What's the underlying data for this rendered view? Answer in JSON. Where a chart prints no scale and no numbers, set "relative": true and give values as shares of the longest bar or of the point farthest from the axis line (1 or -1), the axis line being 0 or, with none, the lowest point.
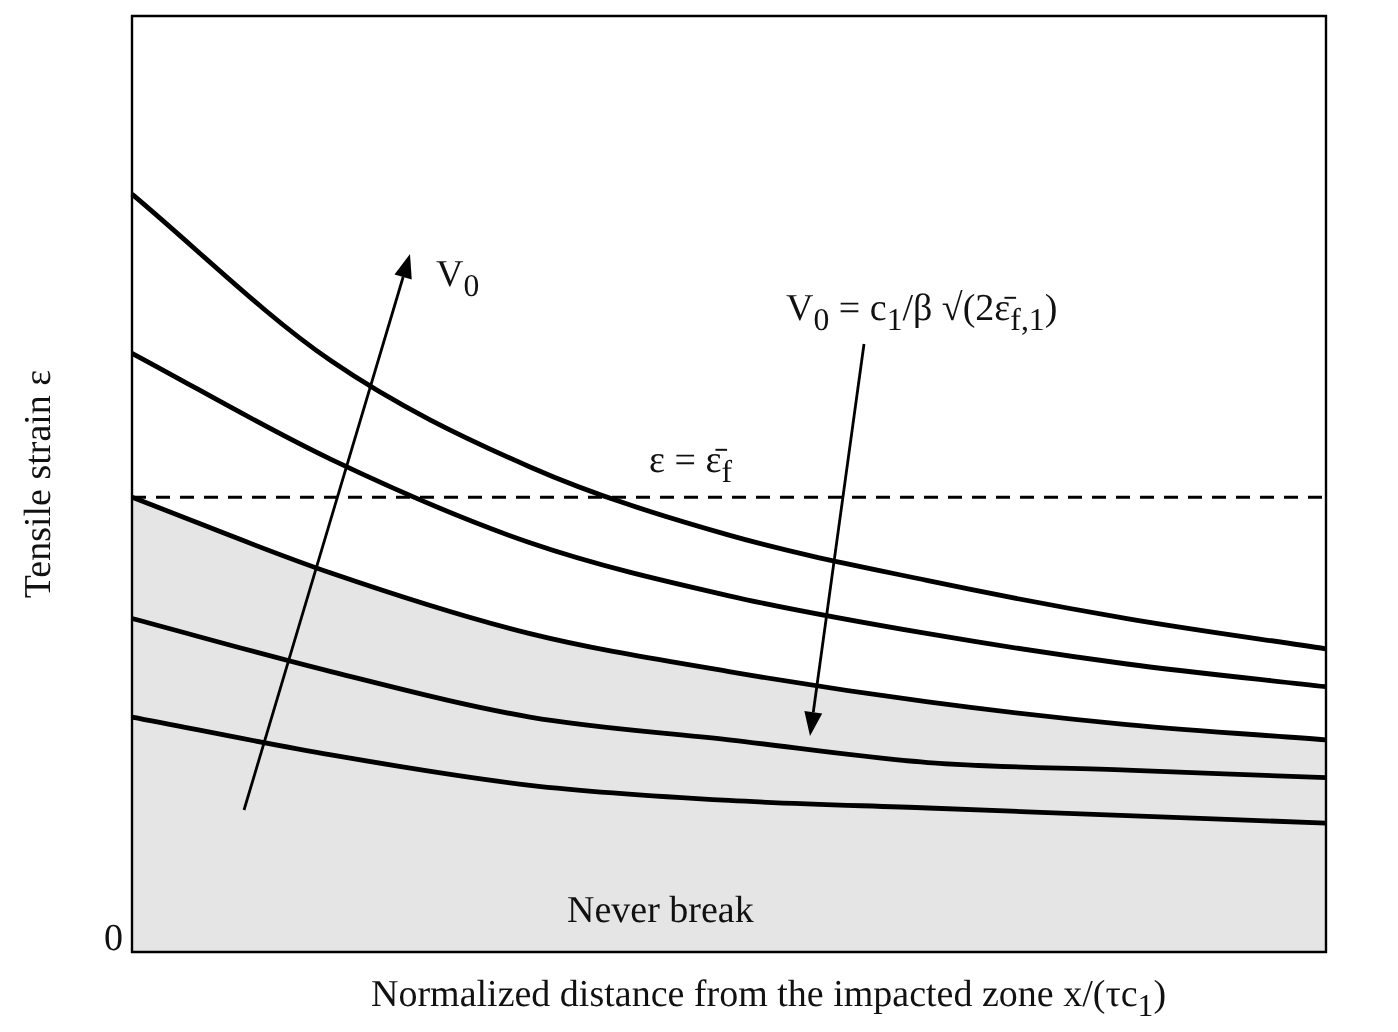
{
  "chart_data": {
    "type": "line",
    "relative": true,
    "xlabel": "Normalized distance from the impacted zone x/(τc$_{1}$)",
    "ylabel": "Tensile strain ε",
    "categories": [
      null,
      null,
      null,
      null,
      null,
      null,
      null
    ],
    "series": [
      {
        "color": "#000000",
        "values": [
          1,
          0.78,
          0.64,
          0.55,
          0.49,
          0.44,
          0.4
        ]
      },
      {
        "color": "#000000",
        "values": [
          0.79,
          0.65,
          0.54,
          0.47,
          0.42,
          0.38,
          0.35
        ]
      },
      {
        "type": "area",
        "color": "#000000",
        "values": [
          0.6,
          0.5,
          0.42,
          0.37,
          0.33,
          0.3,
          0.28
        ]
      },
      {
        "color": "#000000",
        "values": [
          0.44,
          0.37,
          0.31,
          0.28,
          0.25,
          0.24,
          0.23
        ]
      },
      {
        "color": "#000000",
        "values": [
          0.31,
          0.26,
          0.22,
          0.2,
          0.19,
          0.18,
          0.17
        ]
      }
    ],
    "ref_lines": [
      {
        "axis": "y",
        "value": 0.6,
        "label": "ε = ε̄$_{f}$",
        "color": "#000000",
        "line_style": "dashed"
      }
    ],
    "annotations": [
      "V$_{0}$",
      "V$_{0}$ = c$_{1}$/β √(2ε̄$_{f,1}$)",
      "Never break",
      "0"
    ],
    "legend": false,
    "marker": "none",
    "line_style": "solid"
  }
}
